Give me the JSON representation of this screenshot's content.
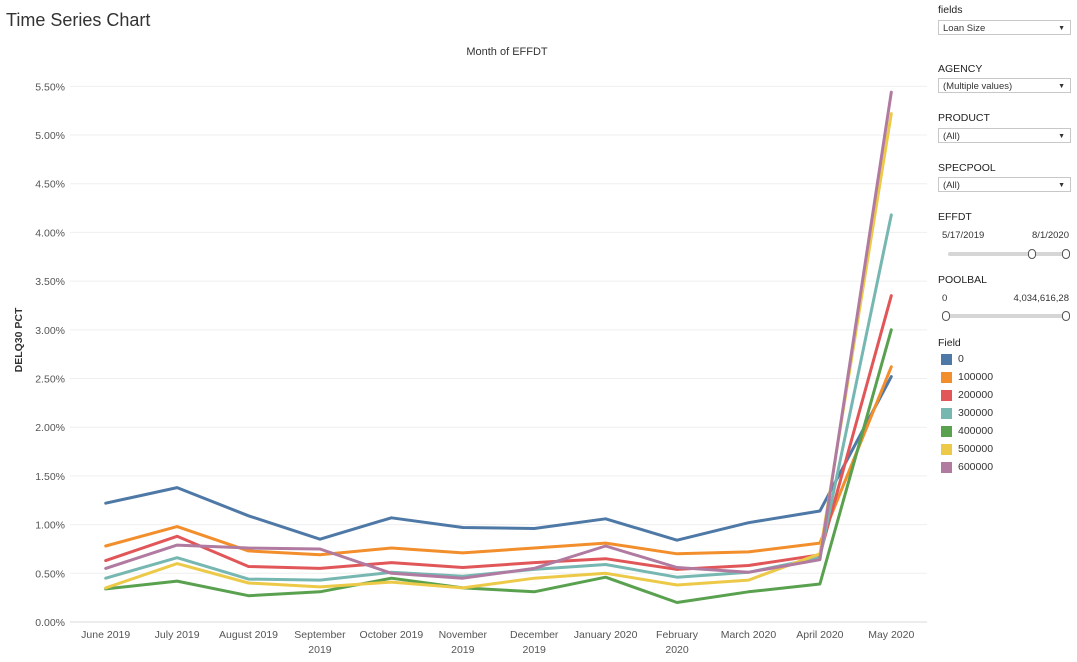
{
  "page_title": "Time Series Chart",
  "chart_data": {
    "type": "line",
    "title": "Month of EFFDT",
    "xlabel": "",
    "ylabel": "DELQ30 PCT",
    "categories": [
      "June 2019",
      "July 2019",
      "August 2019",
      "September 2019",
      "October 2019",
      "November 2019",
      "December 2019",
      "January 2020",
      "February 2020",
      "March 2020",
      "April 2020",
      "May 2020"
    ],
    "ylim": [
      0,
      5.75
    ],
    "yticks": [
      {
        "v": 0,
        "label": "0.00%"
      },
      {
        "v": 0.5,
        "label": "0.50%"
      },
      {
        "v": 1.0,
        "label": "1.00%"
      },
      {
        "v": 1.5,
        "label": "1.50%"
      },
      {
        "v": 2.0,
        "label": "2.00%"
      },
      {
        "v": 2.5,
        "label": "2.50%"
      },
      {
        "v": 3.0,
        "label": "3.00%"
      },
      {
        "v": 3.5,
        "label": "3.50%"
      },
      {
        "v": 4.0,
        "label": "4.00%"
      },
      {
        "v": 4.5,
        "label": "4.50%"
      },
      {
        "v": 5.0,
        "label": "5.00%"
      },
      {
        "v": 5.5,
        "label": "5.50%"
      }
    ],
    "grid": true,
    "legend_placement": "right",
    "series": [
      {
        "name": "0",
        "color": "#4e79a7",
        "values": [
          1.22,
          1.38,
          1.09,
          0.85,
          1.07,
          0.97,
          0.96,
          1.06,
          0.84,
          1.02,
          1.14,
          2.52
        ]
      },
      {
        "name": "100000",
        "color": "#f28e2b",
        "values": [
          0.78,
          0.98,
          0.73,
          0.69,
          0.76,
          0.71,
          0.76,
          0.81,
          0.7,
          0.72,
          0.81,
          2.62
        ]
      },
      {
        "name": "200000",
        "color": "#e15759",
        "values": [
          0.63,
          0.88,
          0.57,
          0.55,
          0.61,
          0.56,
          0.61,
          0.65,
          0.54,
          0.58,
          0.69,
          3.35
        ]
      },
      {
        "name": "300000",
        "color": "#76b7b2",
        "values": [
          0.45,
          0.66,
          0.44,
          0.43,
          0.51,
          0.47,
          0.54,
          0.59,
          0.46,
          0.51,
          0.66,
          4.18
        ]
      },
      {
        "name": "400000",
        "color": "#59a14f",
        "values": [
          0.34,
          0.42,
          0.27,
          0.31,
          0.45,
          0.35,
          0.31,
          0.46,
          0.2,
          0.31,
          0.39,
          3.0
        ]
      },
      {
        "name": "500000",
        "color": "#edc948",
        "values": [
          0.35,
          0.6,
          0.4,
          0.36,
          0.41,
          0.35,
          0.45,
          0.5,
          0.38,
          0.43,
          0.7,
          5.22
        ]
      },
      {
        "name": "600000",
        "color": "#b07aa1",
        "values": [
          0.55,
          0.79,
          0.76,
          0.75,
          0.5,
          0.45,
          0.55,
          0.78,
          0.56,
          0.51,
          0.64,
          5.44
        ]
      }
    ]
  },
  "filters": {
    "fields": {
      "label": "fields",
      "value": "Loan Size"
    },
    "agency": {
      "label": "AGENCY",
      "value": "(Multiple values)"
    },
    "product": {
      "label": "PRODUCT",
      "value": "(All)"
    },
    "specpool": {
      "label": "SPECPOOL",
      "value": "(All)"
    },
    "effdt": {
      "label": "EFFDT",
      "min": "5/17/2019",
      "max": "8/1/2020"
    },
    "poolbal": {
      "label": "POOLBAL",
      "min": "0",
      "max": "4,034,616,28"
    }
  },
  "legend": {
    "title": "Field",
    "items": [
      {
        "label": "0",
        "color": "#4e79a7"
      },
      {
        "label": "100000",
        "color": "#f28e2b"
      },
      {
        "label": "200000",
        "color": "#e15759"
      },
      {
        "label": "300000",
        "color": "#76b7b2"
      },
      {
        "label": "400000",
        "color": "#59a14f"
      },
      {
        "label": "500000",
        "color": "#edc948"
      },
      {
        "label": "600000",
        "color": "#b07aa1"
      }
    ]
  }
}
